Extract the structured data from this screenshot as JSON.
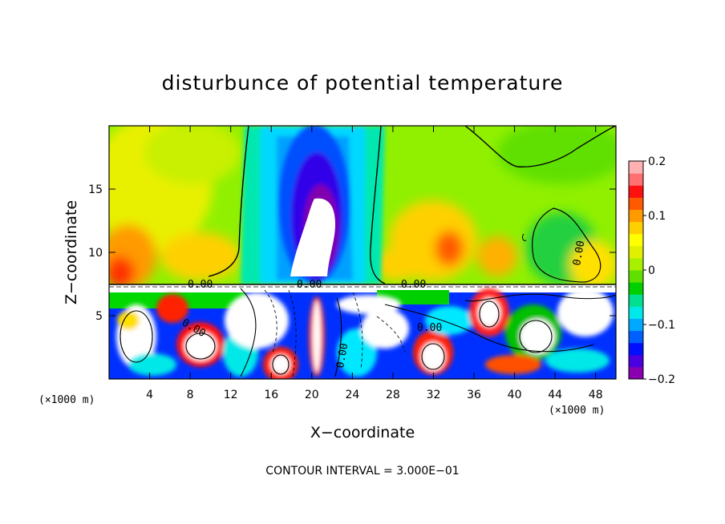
{
  "chart_data": {
    "type": "heatmap",
    "title": "disturbunce of potential temperature",
    "xlabel": "X−coordinate",
    "ylabel": "Z−coordinate",
    "x_unit_left": "(×1000 m)",
    "x_unit_right": "(×1000 m)",
    "xlim": [
      0,
      50
    ],
    "ylim": [
      0,
      20
    ],
    "x_ticks": [
      4,
      8,
      12,
      16,
      20,
      24,
      28,
      32,
      36,
      40,
      44,
      48
    ],
    "y_ticks": [
      5,
      10,
      15
    ],
    "colorbar": {
      "range": [
        -0.2,
        0.2
      ],
      "tick_values": [
        0.2,
        0.1,
        0,
        -0.1,
        -0.2
      ],
      "tick_labels": [
        "0.2",
        "0.1",
        "0",
        "−0.1",
        "−0.2"
      ],
      "colors": [
        "#8a00b0",
        "#4a00e0",
        "#0010ff",
        "#0060ff",
        "#00a8ff",
        "#00e8e8",
        "#00e090",
        "#00d000",
        "#60e000",
        "#a8f000",
        "#e0f000",
        "#ffff00",
        "#ffd000",
        "#ff9a00",
        "#ff5a00",
        "#ff1010",
        "#ff7070",
        "#ffb0b0"
      ]
    },
    "contour_labels": [
      "0.00",
      "0.00",
      "0.00",
      "0.00",
      "0.00",
      "0.00",
      "0.00"
    ],
    "contour_interval_text": "CONTOUR INTERVAL = 3.000E−01"
  }
}
